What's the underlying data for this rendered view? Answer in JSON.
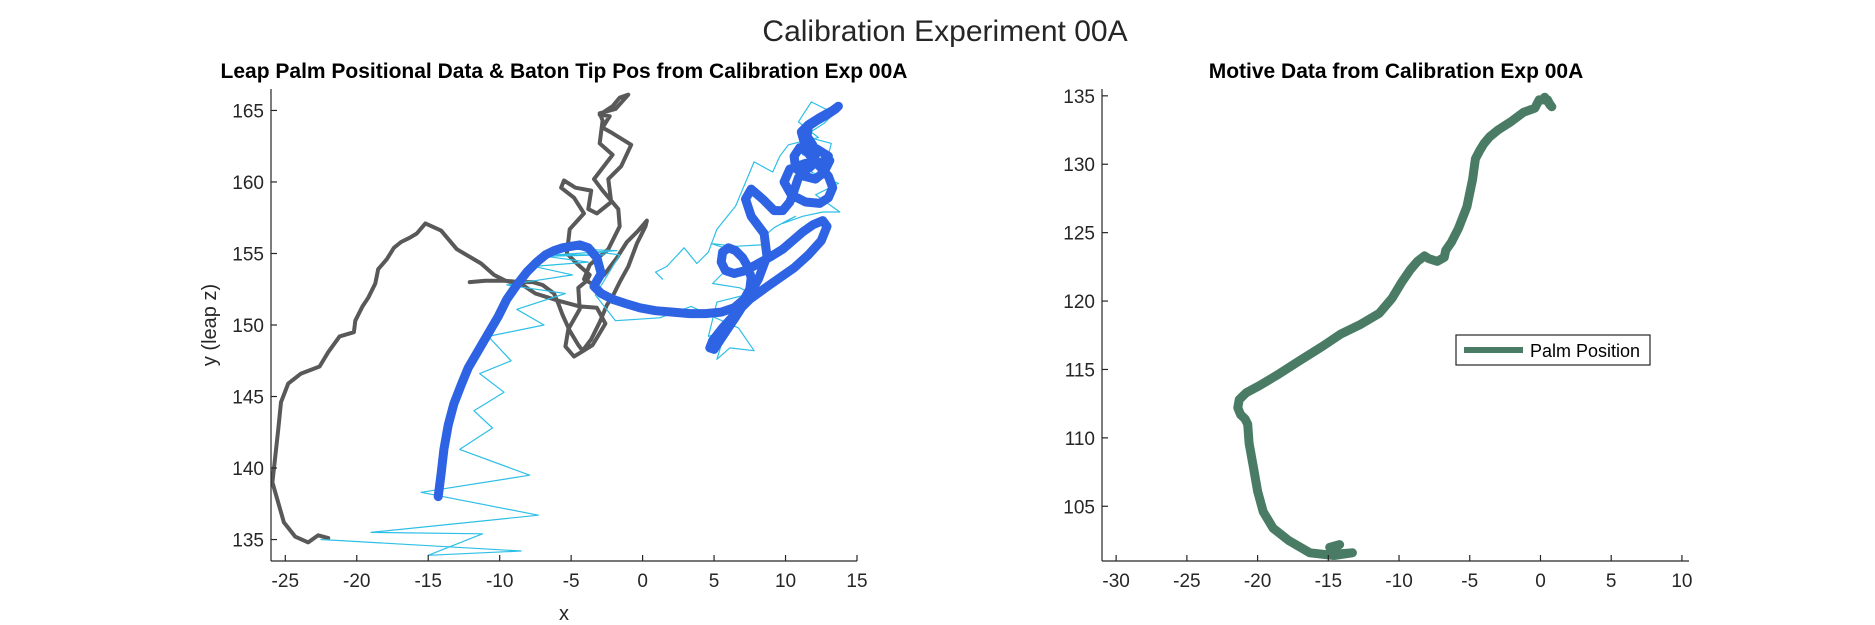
{
  "figure": {
    "suptitle": "Calibration Experiment 00A"
  },
  "chart_data": [
    {
      "type": "line",
      "title": "Leap Palm Positional Data & Baton Tip Pos from Calibration Exp 00A",
      "xlabel": "x",
      "ylabel": "y (leap z)",
      "xlim": [
        -26,
        15
      ],
      "ylim": [
        133.5,
        166.5
      ],
      "xticks": [
        -25,
        -20,
        -15,
        -10,
        -5,
        0,
        5,
        10,
        15
      ],
      "yticks": [
        135,
        140,
        145,
        150,
        155,
        160,
        165
      ],
      "grid": false,
      "legend": null,
      "series": [
        {
          "color": "#595959",
          "style": "medium",
          "x": [
            -22,
            -22.7,
            -23.4,
            -24.3,
            -25.1,
            -25.9,
            -25.5,
            -25.3,
            -24.8,
            -23.9,
            -22.6,
            -22,
            -21.2,
            -20.2,
            -20.1,
            -19.6,
            -19.2,
            -18.7,
            -18.5,
            -17.9,
            -17.4,
            -16.9,
            -16.3,
            -15.8,
            -15.2,
            -14.1,
            -13,
            -11.3,
            -10.4,
            -9.6,
            -8.4,
            -7.5,
            -5.9,
            -4.4,
            -3.2,
            -2.6,
            -3.2,
            -3.5,
            -4.3,
            -4.8,
            -5.4,
            -5.2,
            -4.4,
            -4.5,
            -3.9,
            -3.7,
            -4.5,
            -5.3,
            -5.1,
            -4.1,
            -4.8,
            -5.7,
            -5.5,
            -4.7,
            -3.6,
            -3.8,
            -3.2,
            -2.2,
            -2.4,
            -1.5,
            -0.8,
            -2.1,
            -2.8,
            -2.3,
            -3.0,
            -2.1,
            -1.6,
            -1.0,
            -1.9,
            -3.0,
            -2.8,
            -3.0,
            -2.1,
            -3.4,
            -2.8,
            -1.7,
            -1.6,
            -2.4,
            -3.7,
            -4.1,
            -3.4,
            -2.7,
            -1.8,
            -1.1,
            -0.3,
            0.3,
            0.2,
            -0.4,
            -1.0,
            -1.6,
            -2.1,
            -2.5,
            -3.0,
            -3.6,
            -4.2,
            -4.5,
            -5.1,
            -5.6,
            -5.9,
            -6.2,
            -7.0,
            -7.7,
            -8.5,
            -9.7,
            -11,
            -12.1
          ],
          "y": [
            135.1,
            135.3,
            134.8,
            135.2,
            136.2,
            139,
            142.6,
            144.6,
            145.9,
            146.6,
            147.1,
            148.1,
            149.2,
            149.5,
            150.3,
            151.3,
            151.9,
            152.9,
            153.9,
            154.6,
            155.4,
            155.8,
            156.1,
            156.4,
            157.1,
            156.6,
            155.3,
            154.3,
            153.5,
            153.1,
            152.8,
            152.2,
            151.7,
            151.3,
            151.2,
            150.1,
            149.1,
            148.6,
            148.1,
            147.8,
            148.5,
            149.7,
            151.1,
            152.6,
            153.1,
            153.5,
            154.2,
            155.0,
            156.7,
            157.8,
            158.9,
            159.6,
            160.1,
            159.6,
            159.4,
            158.1,
            157.8,
            158.6,
            160.2,
            161.1,
            162.6,
            163.4,
            163.8,
            164.6,
            164.7,
            165.3,
            165.9,
            166.1,
            165.1,
            164.8,
            164.3,
            162.7,
            161.9,
            160.2,
            159.4,
            158.1,
            156.9,
            155.3,
            154.2,
            153.2,
            152.8,
            153.5,
            154.7,
            155.8,
            156.6,
            157.3,
            156.9,
            155.7,
            154.1,
            153.0,
            152.0,
            151.4,
            150.2,
            149.0,
            148.2,
            148.6,
            149.6,
            150.7,
            151.5,
            152.2,
            152.8,
            153.0,
            153.0,
            153.1,
            153.1,
            153.0
          ]
        },
        {
          "color": "#2ebfe6",
          "style": "thin",
          "x": [
            -22.5,
            -8.5,
            -15,
            -11.2,
            -19,
            -7.3,
            -15.5,
            -7.9,
            -12.8,
            -10.5,
            -11.8,
            -9.7,
            -11.4,
            -9.2,
            -10.8,
            -6.9,
            -8.8,
            -5.4,
            -9.5,
            -4.9,
            -7.6,
            -3.8,
            -6.8,
            -2.7,
            -6.1,
            -1.8,
            -4.6,
            -1.6,
            -3.3,
            -1.9,
            1.2,
            3.4,
            5.1,
            6.7,
            7.8,
            6.1,
            5.2,
            5.8,
            4.6,
            5.2,
            7.6,
            6.8,
            4.9,
            5.6,
            7.2,
            6.3,
            4.8,
            6.5,
            8.3,
            8.6,
            9.2,
            10.1,
            10.7,
            9.8,
            11.2,
            12.6,
            13.8,
            12.1,
            13.7,
            11.8,
            12.4,
            11.2,
            12.9,
            13.2,
            11.3,
            12.7,
            13.4,
            11.8,
            10.9,
            12.3,
            10.2,
            9.6,
            9.1,
            7.8,
            6.5,
            5.2,
            4.6,
            3.8,
            2.9,
            1.7,
            0.9,
            1.4
          ],
          "y": [
            135,
            134.2,
            133.9,
            135.4,
            135.5,
            136.7,
            138.3,
            139.5,
            141.3,
            142.8,
            144,
            145.3,
            146.6,
            147.5,
            149.2,
            150,
            151.1,
            152.2,
            152.8,
            153.5,
            154.1,
            154.4,
            154.8,
            154.9,
            154.9,
            155.2,
            155.3,
            154.9,
            152.1,
            150.3,
            150.5,
            151.3,
            150.5,
            149.8,
            148.2,
            148.4,
            147.6,
            149.6,
            149.2,
            151.6,
            152.2,
            152.6,
            152.9,
            153.6,
            154.1,
            155.2,
            155.7,
            155.5,
            155.6,
            156.3,
            156.8,
            157.3,
            157.6,
            157.1,
            157.6,
            157.9,
            157.9,
            159.1,
            159.9,
            160.7,
            161.6,
            161.9,
            161.5,
            162.7,
            163.2,
            164.1,
            164.8,
            165.6,
            164.2,
            163.1,
            162.6,
            161.8,
            160.7,
            161.4,
            158.3,
            156.7,
            155.1,
            154.3,
            155.4,
            154.1,
            153.7,
            153.2
          ]
        },
        {
          "color": "#2e63e3",
          "style": "thick",
          "x": [
            -14.3,
            -14.1,
            -13.9,
            -13.6,
            -13.2,
            -12.7,
            -12.2,
            -11.5,
            -10.8,
            -10.1,
            -9.5,
            -8.8,
            -8.1,
            -7.4,
            -6.8,
            -6.2,
            -5.6,
            -5.0,
            -4.4,
            -3.8,
            -3.2,
            -2.9,
            -3.3,
            -3.4,
            -2.9,
            -2.1,
            -1.2,
            -0.2,
            0.9,
            2.1,
            3.3,
            4.4,
            5.5,
            6.4,
            7.1,
            7.5,
            7.6,
            7.4,
            7.0,
            6.5,
            6.0,
            5.6,
            5.5,
            5.8,
            6.4,
            7.2,
            8.1,
            9.0,
            9.8,
            10.5,
            11.2,
            11.9,
            12.6,
            12.9,
            12.5,
            11.6,
            10.6,
            9.6,
            8.6,
            7.5,
            6.5,
            5.6,
            4.9,
            4.7,
            5.0,
            5.6,
            6.4,
            7.3,
            8.1,
            8.7,
            8.5,
            7.6,
            7.2,
            7.6,
            8.4,
            9.2,
            9.8,
            10.3,
            10.6,
            10.9,
            11.4,
            11.9,
            12.1,
            11.9,
            11.5,
            11.6,
            12.2,
            12.9,
            13.5,
            13.7,
            13.3,
            12.4,
            11.6,
            11.1,
            11.3,
            12.2,
            13.0,
            12.6,
            11.4,
            10.3,
            9.9,
            10.4,
            11.4,
            12.4,
            13.0,
            13.3,
            13.0,
            12.2,
            11.5,
            11.0,
            10.6,
            10.7,
            11.3,
            12.1,
            12.7,
            13.1
          ],
          "y": [
            138,
            139.6,
            141.3,
            143,
            144.5,
            145.8,
            147,
            148.2,
            149.4,
            150.6,
            151.8,
            152.8,
            153.7,
            154.4,
            154.9,
            155.2,
            155.4,
            155.5,
            155.6,
            155.4,
            154.7,
            153.6,
            152.9,
            152.7,
            152.2,
            151.8,
            151.5,
            151.2,
            151,
            150.9,
            150.8,
            150.8,
            150.9,
            151.2,
            151.8,
            152.5,
            153.3,
            154.0,
            154.7,
            155.2,
            155.4,
            155.1,
            154.4,
            153.8,
            153.6,
            153.8,
            154.3,
            154.8,
            155.3,
            155.9,
            156.5,
            157.0,
            157.3,
            156.9,
            155.9,
            154.9,
            154.0,
            153.3,
            152.6,
            151.8,
            150.8,
            149.8,
            148.9,
            148.4,
            148.3,
            149.2,
            150.4,
            151.8,
            153.2,
            154.8,
            156.4,
            157.6,
            158.8,
            159.5,
            158.8,
            158.0,
            158.0,
            158.6,
            159.4,
            160.3,
            160.8,
            161.2,
            161.9,
            162.6,
            163.2,
            163.9,
            164.3,
            164.7,
            165.1,
            165.3,
            165.0,
            164.5,
            164.0,
            163.5,
            162.8,
            162.3,
            161.8,
            161.4,
            161.3,
            160.9,
            160.0,
            159.1,
            158.6,
            158.5,
            158.9,
            159.6,
            160.4,
            161.3,
            162.1,
            162.4,
            161.8,
            161.0,
            160.4,
            160.2,
            160.7,
            161.5
          ]
        }
      ]
    },
    {
      "type": "line",
      "title": "Motive Data from Calibration Exp 00A",
      "xlabel": "",
      "ylabel": "",
      "xlim": [
        -31,
        10.5
      ],
      "ylim": [
        101,
        135.5
      ],
      "xticks": [
        -30,
        -25,
        -20,
        -15,
        -10,
        -5,
        0,
        5,
        10
      ],
      "yticks": [
        105,
        110,
        115,
        120,
        125,
        130,
        135
      ],
      "grid": false,
      "legend": {
        "position": "center-right",
        "entries": [
          "Palm Position"
        ]
      },
      "series": [
        {
          "name": "Palm Position",
          "color": "#4a7c65",
          "style": "thick",
          "x": [
            -14.9,
            -14.2,
            -14.8,
            -14.6,
            -13.3,
            -14.6,
            -16.3,
            -17.8,
            -18.9,
            -19.6,
            -20,
            -20.3,
            -20.6,
            -20.7,
            -20.9,
            -21.2,
            -21.4,
            -21.3,
            -20.8,
            -19.9,
            -18.6,
            -17.1,
            -15.4,
            -14.1,
            -12.7,
            -11.4,
            -10.5,
            -9.8,
            -9.2,
            -8.7,
            -8.2,
            -7.9,
            -7.3,
            -6.8,
            -6.7,
            -6.3,
            -5.8,
            -5.2,
            -4.8,
            -4.6,
            -4.3,
            -4.0,
            -3.6,
            -3.0,
            -2.1,
            -1.2,
            -0.4,
            -0.1,
            0.5,
            0.7,
            0.3,
            0.8
          ],
          "y": [
            102,
            102.2,
            101.9,
            101.5,
            101.6,
            101.4,
            101.6,
            102.5,
            103.4,
            104.6,
            106.1,
            107.9,
            109.6,
            111,
            111.4,
            111.7,
            112.2,
            112.8,
            113.3,
            113.8,
            114.6,
            115.6,
            116.7,
            117.6,
            118.3,
            119.1,
            120.2,
            121.4,
            122.3,
            122.9,
            123.3,
            123.1,
            122.9,
            123.2,
            123.7,
            124.3,
            125.3,
            126.9,
            128.9,
            130.4,
            131.0,
            131.5,
            132.0,
            132.5,
            133.1,
            133.8,
            134.1,
            134.7,
            134.7,
            134.3,
            134.9,
            134.2
          ]
        }
      ]
    }
  ]
}
